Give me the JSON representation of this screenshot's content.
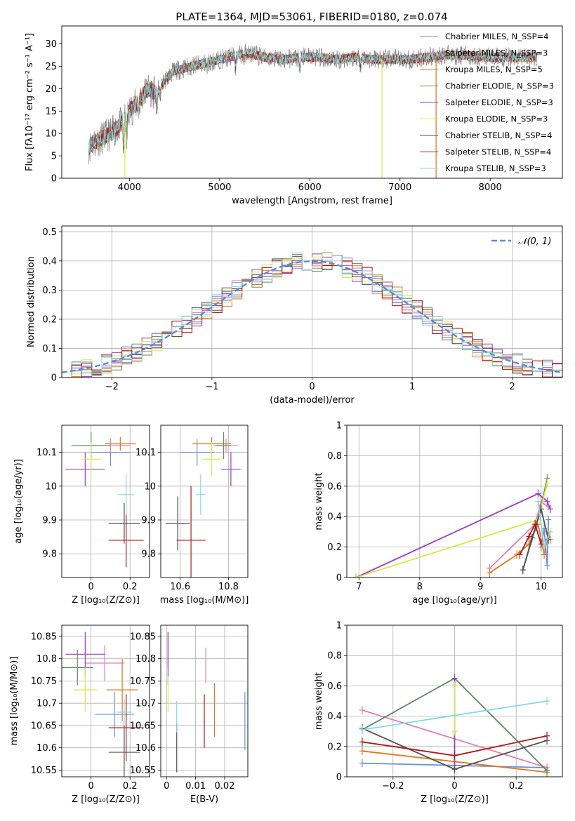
{
  "figure_title": "PLATE=1364, MJD=53061, FIBERID=0180, z=0.074",
  "model_colors": [
    "#6a8ee0",
    "#e47cb8",
    "#e3751c",
    "#5c8a62",
    "#9b3dbf",
    "#d8e64a",
    "#505050",
    "#b01818",
    "#86d9e2"
  ],
  "chart_data": [
    {
      "id": "spectrum",
      "type": "line",
      "title": "PLATE=1364, MJD=53061, FIBERID=0180, z=0.074",
      "xlabel": "wavelength [Angstrom, rest frame]",
      "ylabel": "Flux [fλ10⁻¹⁷ erg cm⁻² s⁻¹ A⁻¹]",
      "xlim": [
        3250,
        8800
      ],
      "ylim": [
        0,
        34
      ],
      "xticks": [
        4000,
        5000,
        6000,
        7000,
        8000
      ],
      "yticks": [
        0,
        5,
        10,
        15,
        20,
        25,
        30
      ],
      "grid": false,
      "legend": "top-right",
      "legend_entries": [
        "Chabrier MILES, N_SSP=4",
        "Salpeter MILES, N_SSP=3",
        "Kroupa MILES, N_SSP=5",
        "Chabrier ELODIE, N_SSP=3",
        "Salpeter ELODIE, N_SSP=3",
        "Kroupa ELODIE, N_SSP=3",
        "Chabrier STELIB, N_SSP=4",
        "Salpeter STELIB, N_SSP=4",
        "Kroupa STELIB, N_SSP=3"
      ],
      "continuum": {
        "x": [
          3550,
          3600,
          3700,
          3800,
          3900,
          4000,
          4100,
          4200,
          4300,
          4400,
          4500,
          4700,
          4900,
          5100,
          5300,
          5500,
          5700,
          5900,
          6100,
          6300,
          6500,
          6700,
          6900,
          7100,
          7300,
          7500,
          7700,
          7900,
          8100,
          8300,
          8500
        ],
        "y": [
          7,
          8,
          9,
          10,
          12,
          15,
          17,
          20,
          19,
          22,
          24,
          25,
          26,
          27,
          28,
          27,
          26.5,
          27,
          27,
          26.5,
          27,
          26.5,
          26.5,
          26.5,
          27,
          27.5,
          27.5,
          27,
          27,
          27,
          27
        ]
      },
      "absorption_dips": [
        [
          3934,
          6
        ],
        [
          3969,
          6
        ],
        [
          4102,
          2
        ],
        [
          4304,
          4
        ],
        [
          4341,
          2
        ],
        [
          4861,
          1.5
        ],
        [
          5175,
          3
        ],
        [
          5270,
          1.5
        ],
        [
          5890,
          3
        ],
        [
          6563,
          1.5
        ]
      ],
      "data_color": "#808080"
    },
    {
      "id": "residuals",
      "type": "step",
      "xlabel": "(data-model)/error",
      "ylabel": "Normed distribution",
      "xlim": [
        -2.5,
        2.5
      ],
      "ylim": [
        0,
        0.52
      ],
      "xticks": [
        -2,
        -1,
        0,
        1,
        2
      ],
      "yticks": [
        0.0,
        0.1,
        0.2,
        0.3,
        0.4,
        0.5
      ],
      "grid": true,
      "legend": "top-right",
      "reference": {
        "name": "𝒩(0, 1)",
        "mean": 0,
        "sigma": 1,
        "color": "#5b8ad6"
      },
      "bin_width": 0.1
    },
    {
      "id": "age-vs-z",
      "type": "errorbar",
      "xlabel": "Z [log₁₀(Z/Z⊙)]",
      "ylabel": "age  [log₁₀(age/yr)]",
      "xlim": [
        -0.15,
        0.3
      ],
      "ylim": [
        9.73,
        10.18
      ],
      "xticks": [
        0.0,
        0.2
      ],
      "yticks": [
        9.8,
        9.9,
        10.0,
        10.1
      ],
      "grid": true,
      "points": [
        {
          "x": 0.1,
          "y": 10.1,
          "xerr": 0.1,
          "yerr": 0.04
        },
        {
          "x": 0.1,
          "y": 10.12,
          "xerr": 0.1,
          "yerr": 0.02
        },
        {
          "x": 0.15,
          "y": 10.125,
          "xerr": 0.08,
          "yerr": 0.02
        },
        {
          "x": 0.0,
          "y": 10.12,
          "xerr": 0.1,
          "yerr": 0.04
        },
        {
          "x": -0.03,
          "y": 10.05,
          "xerr": 0.1,
          "yerr": 0.05
        },
        {
          "x": 0.0,
          "y": 10.08,
          "xerr": 0.05,
          "yerr": 0.05
        },
        {
          "x": 0.17,
          "y": 9.89,
          "xerr": 0.08,
          "yerr": 0.06
        },
        {
          "x": 0.18,
          "y": 9.84,
          "xerr": 0.09,
          "yerr": 0.08
        },
        {
          "x": 0.18,
          "y": 9.975,
          "xerr": 0.04,
          "yerr": 0.06
        }
      ]
    },
    {
      "id": "age-vs-mass",
      "type": "errorbar",
      "xlabel": "mass [log₁₀(M/M⊙)]",
      "ylabel": "",
      "xlim": [
        10.52,
        10.88
      ],
      "ylim": [
        9.73,
        10.18
      ],
      "xticks": [
        10.6,
        10.8
      ],
      "yticks": [
        9.8,
        9.9,
        10.0,
        10.1
      ],
      "grid": true,
      "points": [
        {
          "x": 10.67,
          "y": 10.1,
          "xerr": 0.07,
          "yerr": 0.04
        },
        {
          "x": 10.79,
          "y": 10.12,
          "xerr": 0.05,
          "yerr": 0.02
        },
        {
          "x": 10.73,
          "y": 10.125,
          "xerr": 0.08,
          "yerr": 0.02
        },
        {
          "x": 10.78,
          "y": 10.12,
          "xerr": 0.03,
          "yerr": 0.04
        },
        {
          "x": 10.81,
          "y": 10.05,
          "xerr": 0.04,
          "yerr": 0.05
        },
        {
          "x": 10.73,
          "y": 10.08,
          "xerr": 0.04,
          "yerr": 0.05
        },
        {
          "x": 10.59,
          "y": 9.89,
          "xerr": 0.05,
          "yerr": 0.08
        },
        {
          "x": 10.645,
          "y": 9.84,
          "xerr": 0.06,
          "yerr": 0.16
        },
        {
          "x": 10.685,
          "y": 9.975,
          "xerr": 0.02,
          "yerr": 0.06
        }
      ]
    },
    {
      "id": "weight-vs-age",
      "type": "line",
      "xlabel": "age  [log₁₀(age/yr)]",
      "ylabel": "mass weight",
      "xlim": [
        6.8,
        10.35
      ],
      "ylim": [
        0,
        1
      ],
      "xticks": [
        7,
        8,
        9,
        10
      ],
      "yticks": [
        0.0,
        0.2,
        0.4,
        0.6,
        0.8,
        1.0
      ],
      "grid": true,
      "series": [
        {
          "x": [
            10.0,
            10.05,
            10.1,
            10.12
          ],
          "y": [
            0.2,
            0.32,
            0.08,
            0.38
          ]
        },
        {
          "x": [
            9.15,
            9.9,
            10.0,
            10.15
          ],
          "y": [
            0.06,
            0.35,
            0.5,
            0.45
          ]
        },
        {
          "x": [
            9.15,
            9.6,
            9.8,
            9.95,
            10.05,
            10.12,
            10.15
          ],
          "y": [
            0.03,
            0.15,
            0.22,
            0.35,
            0.15,
            0.3,
            0.25
          ]
        },
        {
          "x": [
            9.7,
            9.95,
            10.1
          ],
          "y": [
            0.05,
            0.38,
            0.65
          ]
        },
        {
          "x": [
            6.95,
            9.95,
            10.1,
            10.15
          ],
          "y": [
            0.0,
            0.55,
            0.5,
            0.45
          ]
        },
        {
          "x": [
            6.95,
            9.95,
            10.1
          ],
          "y": [
            0.0,
            0.38,
            0.62
          ]
        },
        {
          "x": [
            9.7,
            9.85,
            10.0,
            10.12
          ],
          "y": [
            0.05,
            0.26,
            0.45,
            0.25
          ]
        },
        {
          "x": [
            9.65,
            9.8,
            9.9,
            10.0
          ],
          "y": [
            0.15,
            0.27,
            0.35,
            0.22
          ]
        },
        {
          "x": [
            9.95,
            10.05,
            10.15
          ],
          "y": [
            0.5,
            0.2,
            0.3
          ]
        }
      ]
    },
    {
      "id": "mass-vs-z",
      "type": "errorbar",
      "xlabel": "Z [log₁₀(Z/Z⊙)]",
      "ylabel": "mass [log₁₀(M/M⊙)]",
      "xlim": [
        -0.15,
        0.3
      ],
      "ylim": [
        10.535,
        10.875
      ],
      "xticks": [
        0.0,
        0.2
      ],
      "yticks": [
        10.55,
        10.6,
        10.65,
        10.7,
        10.75,
        10.8,
        10.85
      ],
      "grid": true,
      "points": [
        {
          "x": 0.12,
          "y": 10.675,
          "xerr": 0.1,
          "yerr": 0.05
        },
        {
          "x": 0.07,
          "y": 10.79,
          "xerr": 0.1,
          "yerr": 0.04
        },
        {
          "x": 0.16,
          "y": 10.73,
          "xerr": 0.08,
          "yerr": 0.07
        },
        {
          "x": -0.07,
          "y": 10.78,
          "xerr": 0.08,
          "yerr": 0.04
        },
        {
          "x": -0.03,
          "y": 10.81,
          "xerr": 0.1,
          "yerr": 0.05
        },
        {
          "x": -0.03,
          "y": 10.73,
          "xerr": 0.06,
          "yerr": 0.05
        },
        {
          "x": 0.17,
          "y": 10.59,
          "xerr": 0.08,
          "yerr": 0.06
        },
        {
          "x": 0.18,
          "y": 10.645,
          "xerr": 0.09,
          "yerr": 0.075
        },
        {
          "x": 0.17,
          "y": 10.68,
          "xerr": 0.04,
          "yerr": 0.03
        }
      ]
    },
    {
      "id": "mass-vs-ebv",
      "type": "errorbar",
      "xlabel": "E(B-V)",
      "ylabel": "",
      "xlim": [
        -0.002,
        0.028
      ],
      "ylim": [
        10.535,
        10.875
      ],
      "xticks": [
        0.0,
        0.01,
        0.02
      ],
      "yticks": [
        10.55,
        10.6,
        10.65,
        10.7,
        10.75,
        10.8,
        10.85
      ],
      "grid": true,
      "points": [
        {
          "x": 0.027,
          "y": 10.66,
          "xerr": 0,
          "yerr": 0.065
        },
        {
          "x": 0.0135,
          "y": 10.785,
          "xerr": 0,
          "yerr": 0.04
        },
        {
          "x": 0.0165,
          "y": 10.685,
          "xerr": 0,
          "yerr": 0.06
        },
        {
          "x": 0.0005,
          "y": 10.82,
          "xerr": 0,
          "yerr": 0.04
        },
        {
          "x": 0.0005,
          "y": 10.8,
          "xerr": 0,
          "yerr": 0.06
        },
        {
          "x": 0.0005,
          "y": 10.72,
          "xerr": 0,
          "yerr": 0.04
        },
        {
          "x": 0.0035,
          "y": 10.6,
          "xerr": 0,
          "yerr": 0.055
        },
        {
          "x": 0.013,
          "y": 10.66,
          "xerr": 0,
          "yerr": 0.06
        },
        {
          "x": 0.0035,
          "y": 10.67,
          "xerr": 0,
          "yerr": 0.035
        }
      ]
    },
    {
      "id": "weight-vs-z",
      "type": "line",
      "xlabel": "Z [log₁₀(Z/Z⊙)]",
      "ylabel": "mass weight",
      "xlim": [
        -0.35,
        0.35
      ],
      "ylim": [
        0,
        1
      ],
      "xticks": [
        -0.2,
        0.0,
        0.2
      ],
      "yticks": [
        0.0,
        0.2,
        0.4,
        0.6,
        0.8,
        1.0
      ],
      "grid": true,
      "series": [
        {
          "x": [
            -0.3,
            0.3
          ],
          "y": [
            0.09,
            0.06
          ]
        },
        {
          "x": [
            -0.3,
            0.3
          ],
          "y": [
            0.44,
            0.06
          ]
        },
        {
          "x": [
            -0.3,
            0.0,
            0.3
          ],
          "y": [
            0.17,
            0.1,
            0.03
          ]
        },
        {
          "x": [
            -0.3,
            0.0,
            0.3
          ],
          "y": [
            0.31,
            0.65,
            0.04
          ]
        },
        {
          "x": [
            0.0,
            0.0
          ],
          "y": [
            0.05,
            0.65
          ]
        },
        {
          "x": [
            0.0,
            0.0
          ],
          "y": [
            0.3,
            0.6
          ]
        },
        {
          "x": [
            -0.3,
            0.0,
            0.3
          ],
          "y": [
            0.32,
            0.05,
            0.24
          ]
        },
        {
          "x": [
            -0.3,
            0.0,
            0.3
          ],
          "y": [
            0.23,
            0.14,
            0.27
          ]
        },
        {
          "x": [
            -0.3,
            0.3
          ],
          "y": [
            0.31,
            0.5
          ]
        }
      ]
    }
  ]
}
